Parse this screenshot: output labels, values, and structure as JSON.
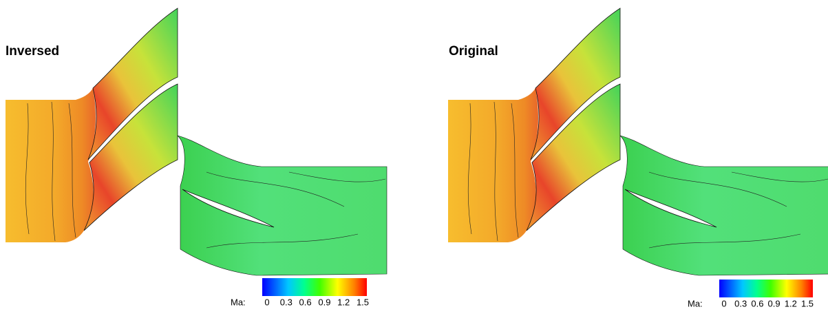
{
  "panels": [
    {
      "title": "Inversed",
      "colorbar": {
        "label": "Ma:",
        "ticks": [
          0,
          0.3,
          0.6,
          0.9,
          1.2,
          1.5
        ]
      }
    },
    {
      "title": "Original",
      "colorbar": {
        "label": "Ma:",
        "ticks": [
          0,
          0.3,
          0.6,
          0.9,
          1.2,
          1.5
        ]
      }
    }
  ]
}
